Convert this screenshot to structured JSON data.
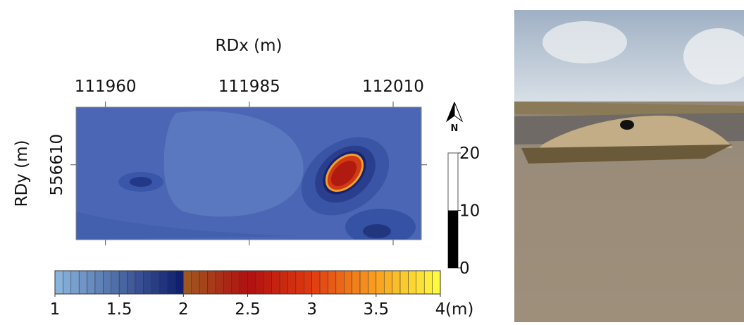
{
  "chart_data": {
    "type": "contour",
    "xlabel": "RDx (m)",
    "ylabel": "RDy (m)",
    "xlim": [
      111954.9,
      112014.9
    ],
    "xticks": [
      111960,
      111985,
      112010
    ],
    "ylim": [
      556597,
      556620
    ],
    "yticks": [
      556610
    ],
    "colorbar": {
      "lim": [
        1,
        4
      ],
      "ticks": [
        1,
        1.5,
        2,
        2.5,
        3,
        3.5,
        4
      ],
      "unit": "(m)",
      "stops": [
        {
          "value": 1,
          "color": "#8cb8e0"
        },
        {
          "value": 2,
          "color": "#0c1a6a"
        },
        {
          "value": 2,
          "color": "#a05a20"
        },
        {
          "value": 2.5,
          "color": "#b01010"
        },
        {
          "value": 3,
          "color": "#e03a10"
        },
        {
          "value": 3.5,
          "color": "#f8a020"
        },
        {
          "value": 4,
          "color": "#ffff40"
        }
      ]
    },
    "north": "N",
    "scale_bar": {
      "lim": [
        0,
        20
      ],
      "ticks": [
        0,
        10,
        20
      ],
      "value": 10
    }
  }
}
